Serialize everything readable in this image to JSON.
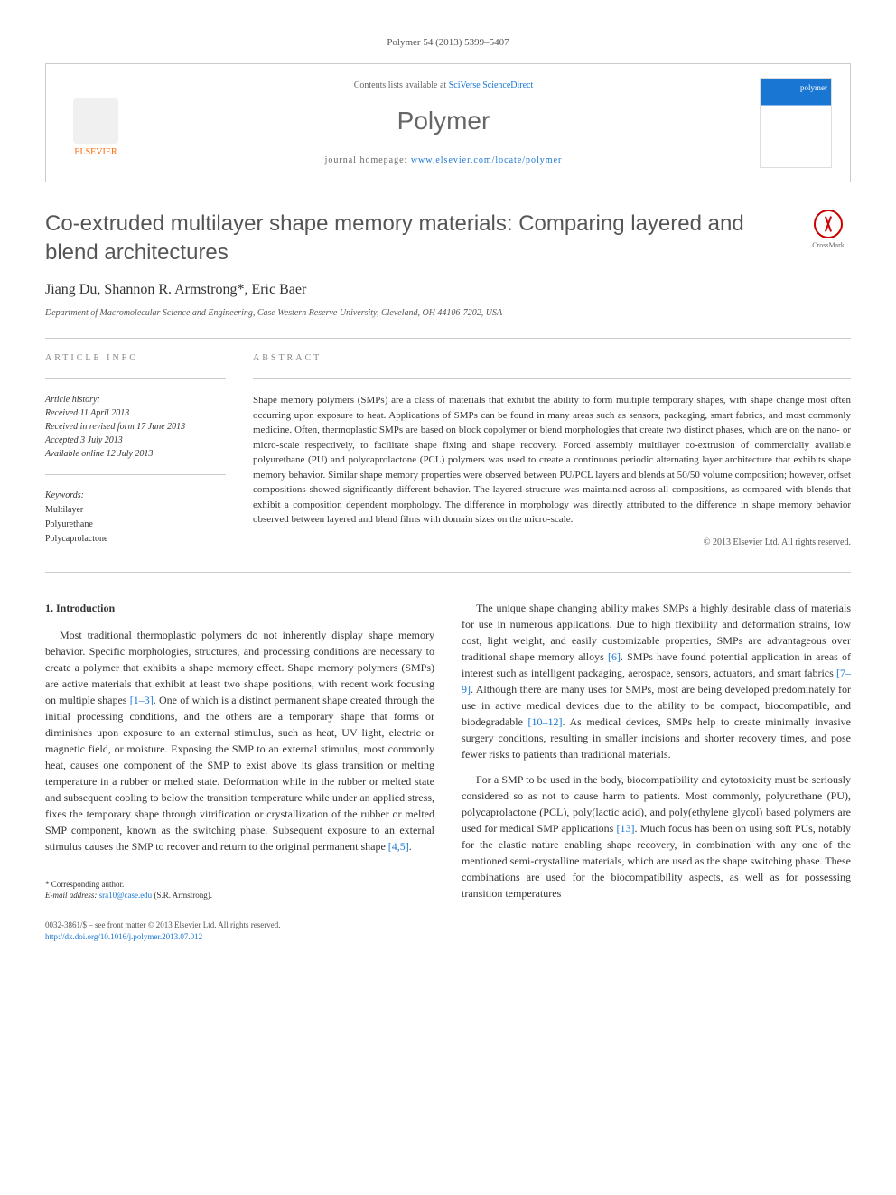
{
  "journal_ref": "Polymer 54 (2013) 5399–5407",
  "header": {
    "elsevier": "ELSEVIER",
    "contents_prefix": "Contents lists available at ",
    "contents_link": "SciVerse ScienceDirect",
    "journal_name": "Polymer",
    "homepage_prefix": "journal homepage: ",
    "homepage_link": "www.elsevier.com/locate/polymer",
    "cover_label": "polymer"
  },
  "title": "Co-extruded multilayer shape memory materials: Comparing layered and blend architectures",
  "crossmark": "CrossMark",
  "authors": "Jiang Du, Shannon R. Armstrong*, Eric Baer",
  "affiliation": "Department of Macromolecular Science and Engineering, Case Western Reserve University, Cleveland, OH 44106-7202, USA",
  "info": {
    "section_label": "ARTICLE INFO",
    "history_label": "Article history:",
    "received": "Received 11 April 2013",
    "revised": "Received in revised form 17 June 2013",
    "accepted": "Accepted 3 July 2013",
    "online": "Available online 12 July 2013",
    "keywords_label": "Keywords:",
    "kw1": "Multilayer",
    "kw2": "Polyurethane",
    "kw3": "Polycaprolactone"
  },
  "abstract": {
    "section_label": "ABSTRACT",
    "text": "Shape memory polymers (SMPs) are a class of materials that exhibit the ability to form multiple temporary shapes, with shape change most often occurring upon exposure to heat. Applications of SMPs can be found in many areas such as sensors, packaging, smart fabrics, and most commonly medicine. Often, thermoplastic SMPs are based on block copolymer or blend morphologies that create two distinct phases, which are on the nano- or micro-scale respectively, to facilitate shape fixing and shape recovery. Forced assembly multilayer co-extrusion of commercially available polyurethane (PU) and polycaprolactone (PCL) polymers was used to create a continuous periodic alternating layer architecture that exhibits shape memory behavior. Similar shape memory properties were observed between PU/PCL layers and blends at 50/50 volume composition; however, offset compositions showed significantly different behavior. The layered structure was maintained across all compositions, as compared with blends that exhibit a composition dependent morphology. The difference in morphology was directly attributed to the difference in shape memory behavior observed between layered and blend films with domain sizes on the micro-scale.",
    "copyright": "© 2013 Elsevier Ltd. All rights reserved."
  },
  "body": {
    "intro_heading": "1. Introduction",
    "p1a": "Most traditional thermoplastic polymers do not inherently display shape memory behavior. Specific morphologies, structures, and processing conditions are necessary to create a polymer that exhibits a shape memory effect. Shape memory polymers (SMPs) are active materials that exhibit at least two shape positions, with recent work focusing on multiple shapes ",
    "p1_ref1": "[1–3]",
    "p1b": ". One of which is a distinct permanent shape created through the initial processing conditions, and the others are a temporary shape that forms or diminishes upon exposure to an external stimulus, such as heat, UV light, electric or magnetic field, or moisture. Exposing the SMP to an external stimulus, most commonly heat, causes one component of the SMP to exist above its glass transition or melting temperature in a rubber or melted state. Deformation while in the rubber or melted state and subsequent cooling to below the transition temperature while under an applied stress, fixes the temporary shape through vitrification or crystallization of the rubber or melted SMP component, known as the switching phase. Subsequent exposure to an external stimulus causes the SMP to recover and return to the original permanent shape ",
    "p1_ref2": "[4,5]",
    "p1c": ".",
    "p2a": "The unique shape changing ability makes SMPs a highly desirable class of materials for use in numerous applications. Due to high flexibility and deformation strains, low cost, light weight, and easily customizable properties, SMPs are advantageous over traditional shape memory alloys ",
    "p2_ref1": "[6]",
    "p2b": ". SMPs have found potential application in areas of interest such as intelligent packaging, aerospace, sensors, actuators, and smart fabrics ",
    "p2_ref2": "[7–9]",
    "p2c": ". Although there are many uses for SMPs, most are being developed predominately for use in active medical devices due to the ability to be compact, biocompatible, and biodegradable ",
    "p2_ref3": "[10–12]",
    "p2d": ". As medical devices, SMPs help to create minimally invasive surgery conditions, resulting in smaller incisions and shorter recovery times, and pose fewer risks to patients than traditional materials.",
    "p3a": "For a SMP to be used in the body, biocompatibility and cytotoxicity must be seriously considered so as not to cause harm to patients. Most commonly, polyurethane (PU), polycaprolactone (PCL), poly(lactic acid), and poly(ethylene glycol) based polymers are used for medical SMP applications ",
    "p3_ref1": "[13]",
    "p3b": ". Much focus has been on using soft PUs, notably for the elastic nature enabling shape recovery, in combination with any one of the mentioned semi-crystalline materials, which are used as the shape switching phase. These combinations are used for the biocompatibility aspects, as well as for possessing transition temperatures"
  },
  "footnote": {
    "corr": "* Corresponding author.",
    "email_label": "E-mail address: ",
    "email": "sra10@case.edu",
    "email_name": " (S.R. Armstrong)."
  },
  "footer": {
    "issn": "0032-3861/$ – see front matter © 2013 Elsevier Ltd. All rights reserved.",
    "doi": "http://dx.doi.org/10.1016/j.polymer.2013.07.012"
  }
}
